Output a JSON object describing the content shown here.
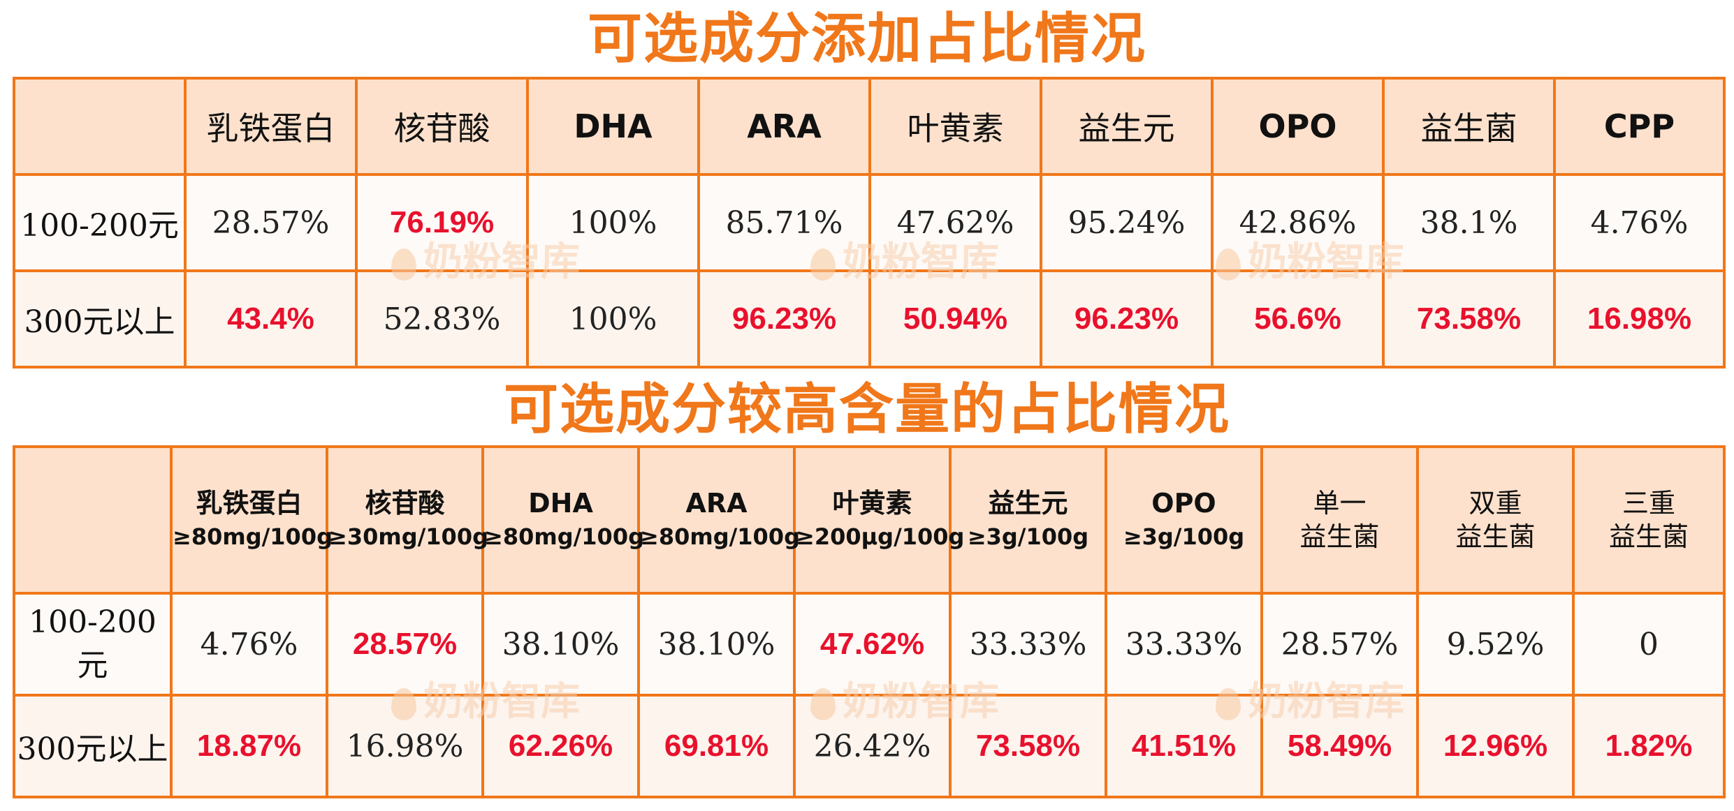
{
  "titles": {
    "top": "可选成分添加占比情况",
    "bottom": "可选成分较高含量的占比情况"
  },
  "watermark": "奶粉智库",
  "colors": {
    "accent": "#f0771a",
    "header_bg": "#fde1cc",
    "highlight": "#e8112d"
  },
  "table1": {
    "headers": [
      "",
      "乳铁蛋白",
      "核苷酸",
      "DHA",
      "ARA",
      "叶黄素",
      "益生元",
      "OPO",
      "益生菌",
      "CPP"
    ],
    "rows": [
      {
        "label": "100-200元",
        "values": [
          "28.57%",
          "76.19%",
          "100%",
          "85.71%",
          "47.62%",
          "95.24%",
          "42.86%",
          "38.1%",
          "4.76%"
        ],
        "highlight": [
          false,
          true,
          false,
          false,
          false,
          false,
          false,
          false,
          false
        ]
      },
      {
        "label": "300元以上",
        "values": [
          "43.4%",
          "52.83%",
          "100%",
          "96.23%",
          "50.94%",
          "96.23%",
          "56.6%",
          "73.58%",
          "16.98%"
        ],
        "highlight": [
          true,
          false,
          false,
          true,
          true,
          true,
          true,
          true,
          true
        ]
      }
    ]
  },
  "table2": {
    "headers": [
      {
        "line1": "",
        "line2": ""
      },
      {
        "line1": "乳铁蛋白",
        "line2": "≥80mg/100g"
      },
      {
        "line1": "核苷酸",
        "line2": "≥30mg/100g"
      },
      {
        "line1": "DHA",
        "line2": "≥80mg/100g"
      },
      {
        "line1": "ARA",
        "line2": "≥80mg/100g"
      },
      {
        "line1": "叶黄素",
        "line2": "≥200μg/100g"
      },
      {
        "line1": "益生元",
        "line2": "≥3g/100g"
      },
      {
        "line1": "OPO",
        "line2": "≥3g/100g"
      },
      {
        "line1": "单一",
        "line2": "益生菌"
      },
      {
        "line1": "双重",
        "line2": "益生菌"
      },
      {
        "line1": "三重",
        "line2": "益生菌"
      }
    ],
    "rows": [
      {
        "label": "100-200元",
        "values": [
          "4.76%",
          "28.57%",
          "38.10%",
          "38.10%",
          "47.62%",
          "33.33%",
          "33.33%",
          "28.57%",
          "9.52%",
          "0"
        ],
        "highlight": [
          false,
          true,
          false,
          false,
          true,
          false,
          false,
          false,
          false,
          false
        ]
      },
      {
        "label": "300元以上",
        "values": [
          "18.87%",
          "16.98%",
          "62.26%",
          "69.81%",
          "26.42%",
          "73.58%",
          "41.51%",
          "58.49%",
          "12.96%",
          "1.82%"
        ],
        "highlight": [
          true,
          false,
          true,
          true,
          false,
          true,
          true,
          true,
          true,
          true
        ]
      }
    ]
  }
}
